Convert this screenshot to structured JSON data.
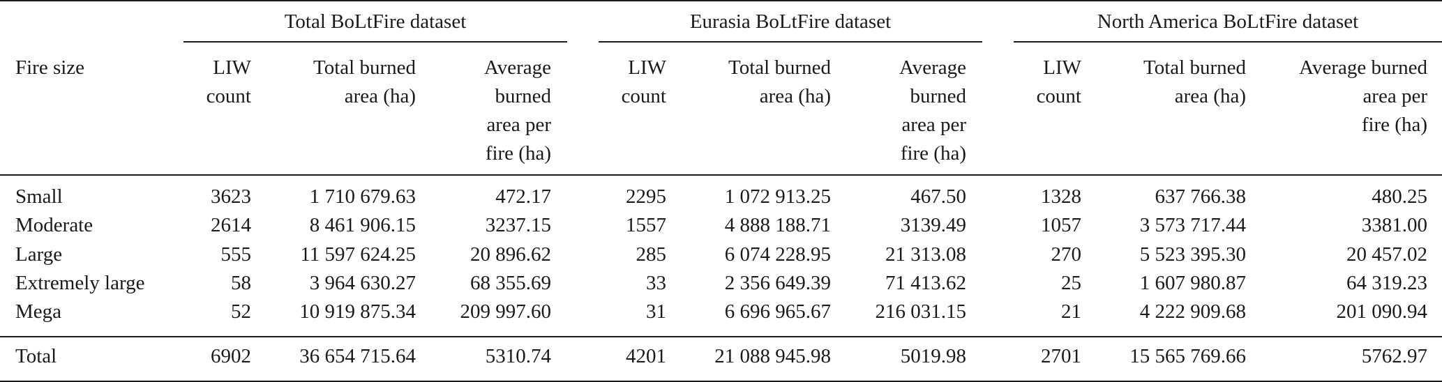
{
  "table": {
    "groups": [
      {
        "title": "Total BoLtFire dataset"
      },
      {
        "title": "Eurasia BoLtFire dataset"
      },
      {
        "title": "North America BoLtFire dataset"
      }
    ],
    "row_header_label": "Fire size",
    "col_headers": {
      "g0": {
        "liw": [
          "LIW",
          "count"
        ],
        "total": [
          "Total burned",
          "area (ha)"
        ],
        "avg": [
          "Average",
          "burned",
          "area per",
          "fire (ha)"
        ]
      },
      "g1": {
        "liw": [
          "LIW",
          "count"
        ],
        "total": [
          "Total burned",
          "area (ha)"
        ],
        "avg": [
          "Average",
          "burned",
          "area per",
          "fire (ha)"
        ]
      },
      "g2": {
        "liw": [
          "LIW",
          "count"
        ],
        "total": [
          "Total burned",
          "area (ha)"
        ],
        "avg": [
          "Average burned",
          "area per",
          "fire (ha)"
        ]
      }
    },
    "rows": [
      {
        "label": "Small",
        "cells": [
          "3623",
          "1 710 679.63",
          "472.17",
          "2295",
          "1 072 913.25",
          "467.50",
          "1328",
          "637 766.38",
          "480.25"
        ]
      },
      {
        "label": "Moderate",
        "cells": [
          "2614",
          "8 461 906.15",
          "3237.15",
          "1557",
          "4 888 188.71",
          "3139.49",
          "1057",
          "3 573 717.44",
          "3381.00"
        ]
      },
      {
        "label": "Large",
        "cells": [
          "555",
          "11 597 624.25",
          "20 896.62",
          "285",
          "6 074 228.95",
          "21 313.08",
          "270",
          "5 523 395.30",
          "20 457.02"
        ]
      },
      {
        "label": "Extremely large",
        "cells": [
          "58",
          "3 964 630.27",
          "68 355.69",
          "33",
          "2 356 649.39",
          "71 413.62",
          "25",
          "1 607 980.87",
          "64 319.23"
        ]
      },
      {
        "label": "Mega",
        "cells": [
          "52",
          "10 919 875.34",
          "209 997.60",
          "31",
          "6 696 965.67",
          "216 031.15",
          "21",
          "4 222 909.68",
          "201 090.94"
        ]
      }
    ],
    "total_row": {
      "label": "Total",
      "cells": [
        "6902",
        "36 654 715.64",
        "5310.74",
        "4201",
        "21 088 945.98",
        "5019.98",
        "2701",
        "15 565 769.66",
        "5762.97"
      ]
    }
  }
}
